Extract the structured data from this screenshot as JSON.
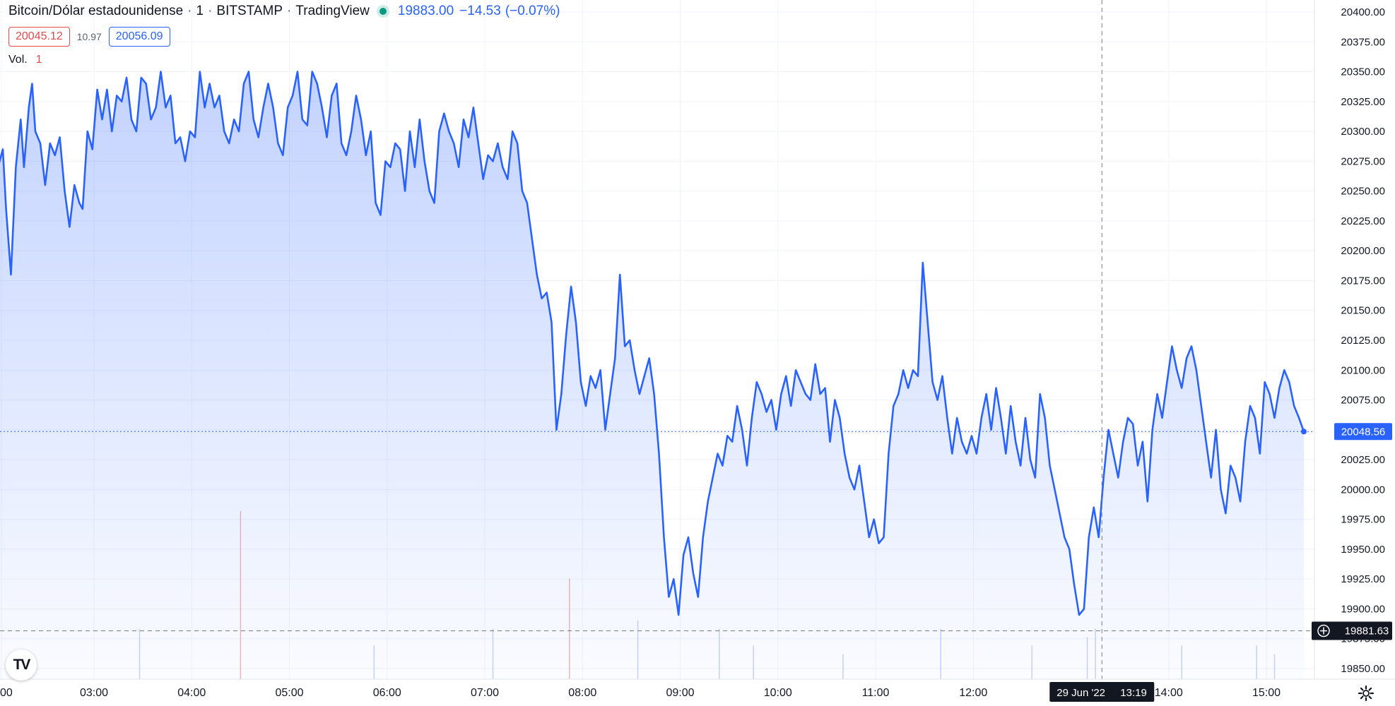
{
  "header": {
    "symbol": "Bitcoin/Dólar estadounidense",
    "interval": "1",
    "exchange": "BITSTAMP",
    "source": "TradingView",
    "separator": "·",
    "last_price": "19883.00",
    "change": "−14.53",
    "change_pct": "(−0.07%)",
    "status_color": "#089981"
  },
  "bid_ask": {
    "bid": "20045.12",
    "spread": "10.97",
    "ask": "20056.09"
  },
  "volume": {
    "label": "Vol.",
    "value": "1"
  },
  "logo": {
    "text": "TV",
    "icon": "tradingview-logo-icon"
  },
  "settings": {
    "icon": "gear-icon"
  },
  "chart_data": {
    "type": "area",
    "line_color": "#2962ff",
    "fill_color": "#2962ff",
    "grid": true,
    "x_ticks": [
      "00",
      "03:00",
      "04:00",
      "05:00",
      "06:00",
      "07:00",
      "08:00",
      "09:00",
      "10:00",
      "11:00",
      "12:00",
      "14:00",
      "15:00"
    ],
    "y_ticks": [
      "19850.00",
      "19875.00",
      "19900.00",
      "19925.00",
      "19950.00",
      "19975.00",
      "20000.00",
      "20025.00",
      "20050.00",
      "20075.00",
      "20100.00",
      "20125.00",
      "20150.00",
      "20175.00",
      "20200.00",
      "20225.00",
      "20250.00",
      "20275.00",
      "20300.00",
      "20325.00",
      "20350.00",
      "20375.00",
      "20400.00"
    ],
    "ylim": [
      19838,
      20410
    ],
    "x_range": [
      "02:01",
      "15:45"
    ],
    "current_price_label": "20048.56",
    "current_price": 20048.56,
    "cursor_price_label": "19881.63",
    "cursor_price": 19881.63,
    "cursor_date": "29 Jun '22",
    "cursor_time": "13:19",
    "cursor_x": "13:19",
    "series": [
      {
        "values": [
          [
            "02:01",
            20270
          ],
          [
            "02:04",
            20285
          ],
          [
            "02:06",
            20235
          ],
          [
            "02:09",
            20180
          ],
          [
            "02:12",
            20270
          ],
          [
            "02:15",
            20310
          ],
          [
            "02:17",
            20270
          ],
          [
            "02:20",
            20320
          ],
          [
            "02:22",
            20340
          ],
          [
            "02:24",
            20300
          ],
          [
            "02:27",
            20290
          ],
          [
            "02:30",
            20255
          ],
          [
            "02:33",
            20290
          ],
          [
            "02:36",
            20280
          ],
          [
            "02:39",
            20295
          ],
          [
            "02:42",
            20250
          ],
          [
            "02:45",
            20220
          ],
          [
            "02:48",
            20255
          ],
          [
            "02:51",
            20240
          ],
          [
            "02:53",
            20235
          ],
          [
            "02:56",
            20300
          ],
          [
            "02:59",
            20285
          ],
          [
            "03:02",
            20335
          ],
          [
            "03:05",
            20310
          ],
          [
            "03:08",
            20335
          ],
          [
            "03:11",
            20300
          ],
          [
            "03:14",
            20330
          ],
          [
            "03:17",
            20325
          ],
          [
            "03:20",
            20345
          ],
          [
            "03:23",
            20310
          ],
          [
            "03:26",
            20300
          ],
          [
            "03:29",
            20345
          ],
          [
            "03:32",
            20340
          ],
          [
            "03:35",
            20310
          ],
          [
            "03:38",
            20320
          ],
          [
            "03:41",
            20350
          ],
          [
            "03:44",
            20320
          ],
          [
            "03:47",
            20330
          ],
          [
            "03:50",
            20290
          ],
          [
            "03:53",
            20295
          ],
          [
            "03:56",
            20275
          ],
          [
            "03:59",
            20300
          ],
          [
            "04:02",
            20295
          ],
          [
            "04:05",
            20350
          ],
          [
            "04:08",
            20320
          ],
          [
            "04:11",
            20340
          ],
          [
            "04:14",
            20320
          ],
          [
            "04:17",
            20330
          ],
          [
            "04:20",
            20300
          ],
          [
            "04:23",
            20290
          ],
          [
            "04:26",
            20310
          ],
          [
            "04:29",
            20300
          ],
          [
            "04:32",
            20340
          ],
          [
            "04:35",
            20350
          ],
          [
            "04:38",
            20310
          ],
          [
            "04:41",
            20295
          ],
          [
            "04:44",
            20320
          ],
          [
            "04:47",
            20340
          ],
          [
            "04:50",
            20320
          ],
          [
            "04:53",
            20290
          ],
          [
            "04:56",
            20280
          ],
          [
            "04:59",
            20320
          ],
          [
            "05:02",
            20330
          ],
          [
            "05:05",
            20350
          ],
          [
            "05:08",
            20310
          ],
          [
            "05:11",
            20305
          ],
          [
            "05:14",
            20350
          ],
          [
            "05:17",
            20340
          ],
          [
            "05:20",
            20320
          ],
          [
            "05:23",
            20295
          ],
          [
            "05:26",
            20330
          ],
          [
            "05:29",
            20340
          ],
          [
            "05:32",
            20290
          ],
          [
            "05:35",
            20280
          ],
          [
            "05:38",
            20300
          ],
          [
            "05:41",
            20330
          ],
          [
            "05:44",
            20310
          ],
          [
            "05:47",
            20280
          ],
          [
            "05:50",
            20300
          ],
          [
            "05:53",
            20240
          ],
          [
            "05:56",
            20230
          ],
          [
            "05:59",
            20275
          ],
          [
            "06:02",
            20270
          ],
          [
            "06:05",
            20290
          ],
          [
            "06:08",
            20285
          ],
          [
            "06:11",
            20250
          ],
          [
            "06:14",
            20300
          ],
          [
            "06:17",
            20270
          ],
          [
            "06:20",
            20310
          ],
          [
            "06:23",
            20275
          ],
          [
            "06:26",
            20250
          ],
          [
            "06:29",
            20240
          ],
          [
            "06:32",
            20300
          ],
          [
            "06:35",
            20315
          ],
          [
            "06:38",
            20300
          ],
          [
            "06:41",
            20290
          ],
          [
            "06:44",
            20270
          ],
          [
            "06:47",
            20310
          ],
          [
            "06:50",
            20295
          ],
          [
            "06:53",
            20320
          ],
          [
            "06:56",
            20290
          ],
          [
            "06:59",
            20260
          ],
          [
            "07:02",
            20280
          ],
          [
            "07:05",
            20275
          ],
          [
            "07:08",
            20290
          ],
          [
            "07:11",
            20270
          ],
          [
            "07:14",
            20260
          ],
          [
            "07:17",
            20300
          ],
          [
            "07:20",
            20290
          ],
          [
            "07:23",
            20250
          ],
          [
            "07:26",
            20240
          ],
          [
            "07:29",
            20210
          ],
          [
            "07:32",
            20180
          ],
          [
            "07:35",
            20160
          ],
          [
            "07:38",
            20165
          ],
          [
            "07:41",
            20140
          ],
          [
            "07:44",
            20050
          ],
          [
            "07:47",
            20080
          ],
          [
            "07:50",
            20130
          ],
          [
            "07:53",
            20170
          ],
          [
            "07:56",
            20140
          ],
          [
            "07:59",
            20090
          ],
          [
            "08:02",
            20070
          ],
          [
            "08:05",
            20095
          ],
          [
            "08:08",
            20085
          ],
          [
            "08:11",
            20100
          ],
          [
            "08:14",
            20050
          ],
          [
            "08:17",
            20080
          ],
          [
            "08:20",
            20110
          ],
          [
            "08:23",
            20180
          ],
          [
            "08:26",
            20120
          ],
          [
            "08:29",
            20125
          ],
          [
            "08:32",
            20100
          ],
          [
            "08:35",
            20080
          ],
          [
            "08:38",
            20095
          ],
          [
            "08:41",
            20110
          ],
          [
            "08:44",
            20080
          ],
          [
            "08:47",
            20030
          ],
          [
            "08:50",
            19960
          ],
          [
            "08:53",
            19910
          ],
          [
            "08:56",
            19925
          ],
          [
            "08:59",
            19895
          ],
          [
            "09:02",
            19945
          ],
          [
            "09:05",
            19960
          ],
          [
            "09:08",
            19930
          ],
          [
            "09:11",
            19910
          ],
          [
            "09:14",
            19960
          ],
          [
            "09:17",
            19990
          ],
          [
            "09:20",
            20010
          ],
          [
            "09:23",
            20030
          ],
          [
            "09:26",
            20020
          ],
          [
            "09:29",
            20045
          ],
          [
            "09:32",
            20040
          ],
          [
            "09:35",
            20070
          ],
          [
            "09:38",
            20050
          ],
          [
            "09:41",
            20020
          ],
          [
            "09:44",
            20060
          ],
          [
            "09:47",
            20090
          ],
          [
            "09:50",
            20080
          ],
          [
            "09:53",
            20065
          ],
          [
            "09:56",
            20075
          ],
          [
            "09:59",
            20050
          ],
          [
            "10:02",
            20080
          ],
          [
            "10:05",
            20095
          ],
          [
            "10:08",
            20070
          ],
          [
            "10:11",
            20100
          ],
          [
            "10:14",
            20090
          ],
          [
            "10:17",
            20080
          ],
          [
            "10:20",
            20075
          ],
          [
            "10:23",
            20105
          ],
          [
            "10:26",
            20080
          ],
          [
            "10:29",
            20085
          ],
          [
            "10:32",
            20040
          ],
          [
            "10:35",
            20075
          ],
          [
            "10:38",
            20060
          ],
          [
            "10:41",
            20030
          ],
          [
            "10:44",
            20010
          ],
          [
            "10:47",
            20000
          ],
          [
            "10:50",
            20020
          ],
          [
            "10:53",
            19990
          ],
          [
            "10:56",
            19960
          ],
          [
            "10:59",
            19975
          ],
          [
            "11:02",
            19955
          ],
          [
            "11:05",
            19960
          ],
          [
            "11:08",
            20030
          ],
          [
            "11:11",
            20070
          ],
          [
            "11:14",
            20080
          ],
          [
            "11:17",
            20100
          ],
          [
            "11:20",
            20085
          ],
          [
            "11:23",
            20100
          ],
          [
            "11:26",
            20095
          ],
          [
            "11:29",
            20190
          ],
          [
            "11:32",
            20140
          ],
          [
            "11:35",
            20090
          ],
          [
            "11:38",
            20075
          ],
          [
            "11:41",
            20095
          ],
          [
            "11:44",
            20060
          ],
          [
            "11:47",
            20030
          ],
          [
            "11:50",
            20060
          ],
          [
            "11:53",
            20040
          ],
          [
            "11:56",
            20030
          ],
          [
            "11:59",
            20045
          ],
          [
            "12:02",
            20030
          ],
          [
            "12:05",
            20060
          ],
          [
            "12:08",
            20080
          ],
          [
            "12:11",
            20050
          ],
          [
            "12:14",
            20085
          ],
          [
            "12:17",
            20060
          ],
          [
            "12:20",
            20030
          ],
          [
            "12:23",
            20070
          ],
          [
            "12:26",
            20040
          ],
          [
            "12:29",
            20020
          ],
          [
            "12:32",
            20060
          ],
          [
            "12:35",
            20025
          ],
          [
            "12:38",
            20010
          ],
          [
            "12:41",
            20080
          ],
          [
            "12:44",
            20060
          ],
          [
            "12:47",
            20020
          ],
          [
            "12:50",
            20000
          ],
          [
            "12:53",
            19980
          ],
          [
            "12:56",
            19960
          ],
          [
            "12:59",
            19950
          ],
          [
            "13:02",
            19920
          ],
          [
            "13:05",
            19895
          ],
          [
            "13:08",
            19900
          ],
          [
            "13:11",
            19960
          ],
          [
            "13:14",
            19985
          ],
          [
            "13:17",
            19960
          ],
          [
            "13:20",
            20010
          ],
          [
            "13:23",
            20050
          ],
          [
            "13:26",
            20030
          ],
          [
            "13:29",
            20010
          ],
          [
            "13:32",
            20040
          ],
          [
            "13:35",
            20060
          ],
          [
            "13:38",
            20055
          ],
          [
            "13:41",
            20020
          ],
          [
            "13:44",
            20040
          ],
          [
            "13:47",
            19990
          ],
          [
            "13:50",
            20050
          ],
          [
            "13:53",
            20080
          ],
          [
            "13:56",
            20060
          ],
          [
            "13:59",
            20090
          ],
          [
            "14:02",
            20120
          ],
          [
            "14:05",
            20100
          ],
          [
            "14:08",
            20085
          ],
          [
            "14:11",
            20110
          ],
          [
            "14:14",
            20120
          ],
          [
            "14:17",
            20100
          ],
          [
            "14:20",
            20070
          ],
          [
            "14:23",
            20040
          ],
          [
            "14:26",
            20010
          ],
          [
            "14:29",
            20050
          ],
          [
            "14:32",
            20000
          ],
          [
            "14:35",
            19980
          ],
          [
            "14:38",
            20020
          ],
          [
            "14:41",
            20010
          ],
          [
            "14:44",
            19990
          ],
          [
            "14:47",
            20040
          ],
          [
            "14:50",
            20070
          ],
          [
            "14:53",
            20060
          ],
          [
            "14:56",
            20030
          ],
          [
            "14:59",
            20090
          ],
          [
            "15:02",
            20080
          ],
          [
            "15:05",
            20060
          ],
          [
            "15:08",
            20085
          ],
          [
            "15:11",
            20100
          ],
          [
            "15:14",
            20090
          ],
          [
            "15:17",
            20070
          ],
          [
            "15:20",
            20060
          ],
          [
            "15:23",
            20048.56
          ]
        ]
      }
    ],
    "volume_bars": [
      [
        "03:28",
        0.3
      ],
      [
        "04:30",
        1.0
      ],
      [
        "05:52",
        0.2
      ],
      [
        "07:05",
        0.3
      ],
      [
        "07:52",
        0.6
      ],
      [
        "08:34",
        0.35
      ],
      [
        "09:24",
        0.3
      ],
      [
        "09:45",
        0.2
      ],
      [
        "10:40",
        0.15
      ],
      [
        "11:40",
        0.3
      ],
      [
        "12:36",
        0.2
      ],
      [
        "13:10",
        0.25
      ],
      [
        "13:15",
        0.3
      ],
      [
        "14:08",
        0.2
      ],
      [
        "14:54",
        0.2
      ],
      [
        "15:05",
        0.15
      ]
    ]
  }
}
